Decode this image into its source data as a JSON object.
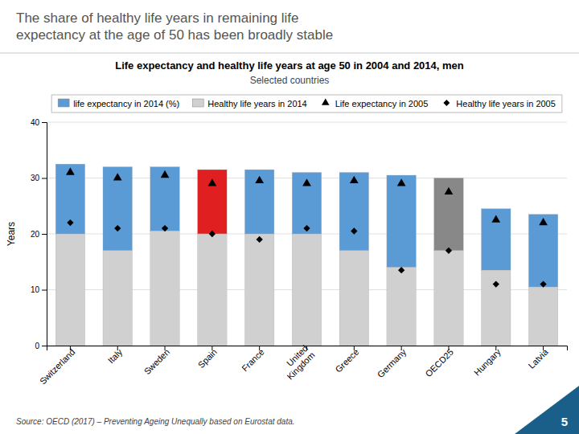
{
  "chart_data": {
    "type": "bar",
    "title": "The share of healthy life years in remaining life\nexpectancy at the age of 50 has been broadly stable",
    "subtitle": "Life expectancy and healthy life years at age 50 in 2004 and 2014, men",
    "annotations": [
      "Selected countries",
      "Source: OECD (2017) – Preventing Ageing Unequally based on Eurostat data.",
      "5"
    ],
    "y_label": "Years",
    "categories": [
      "Switzerland",
      "Italy",
      "Sweden",
      "Spain",
      "France",
      "United\nKingdom",
      "Greece",
      "Germany",
      "OECD25",
      "Hungary",
      "Latvia"
    ],
    "stacked": true,
    "series": [
      {
        "name": "life expectancy in 2014 (%)",
        "type": "bar",
        "color": "#5b9bd5",
        "colors": [
          "#5b9bd5",
          "#5b9bd5",
          "#5b9bd5",
          "#e02020",
          "#5b9bd5",
          "#5b9bd5",
          "#5b9bd5",
          "#5b9bd5",
          "#888888",
          "#5b9bd5",
          "#5b9bd5"
        ],
        "values": [
          12.5,
          15.0,
          11.5,
          11.5,
          11.5,
          11.0,
          14.0,
          16.5,
          13.0,
          11.0,
          13.0
        ]
      },
      {
        "name": "Healthy life years in 2014",
        "type": "bar",
        "color": "#d0d0d0",
        "values": [
          20.0,
          17.0,
          20.5,
          20.0,
          20.0,
          20.0,
          17.0,
          14.0,
          17.0,
          13.5,
          10.5
        ]
      },
      {
        "name": "Life expectancy in 2005",
        "type": "scatter",
        "marker": "triangle",
        "color": "#000000",
        "values": [
          31.0,
          30.0,
          30.5,
          29.0,
          29.5,
          29.0,
          29.5,
          29.0,
          27.5,
          22.5,
          22.0
        ]
      },
      {
        "name": "Healthy life years in 2005",
        "type": "scatter",
        "marker": "diamond",
        "color": "#000000",
        "values": [
          22.0,
          21.0,
          21.0,
          20.0,
          19.0,
          21.0,
          20.5,
          13.5,
          17.0,
          11.0,
          11.0
        ]
      }
    ],
    "ylim": [
      0,
      40
    ],
    "yticks": [
      0,
      10,
      20,
      30,
      40
    ],
    "grid": true,
    "legend": "top"
  }
}
